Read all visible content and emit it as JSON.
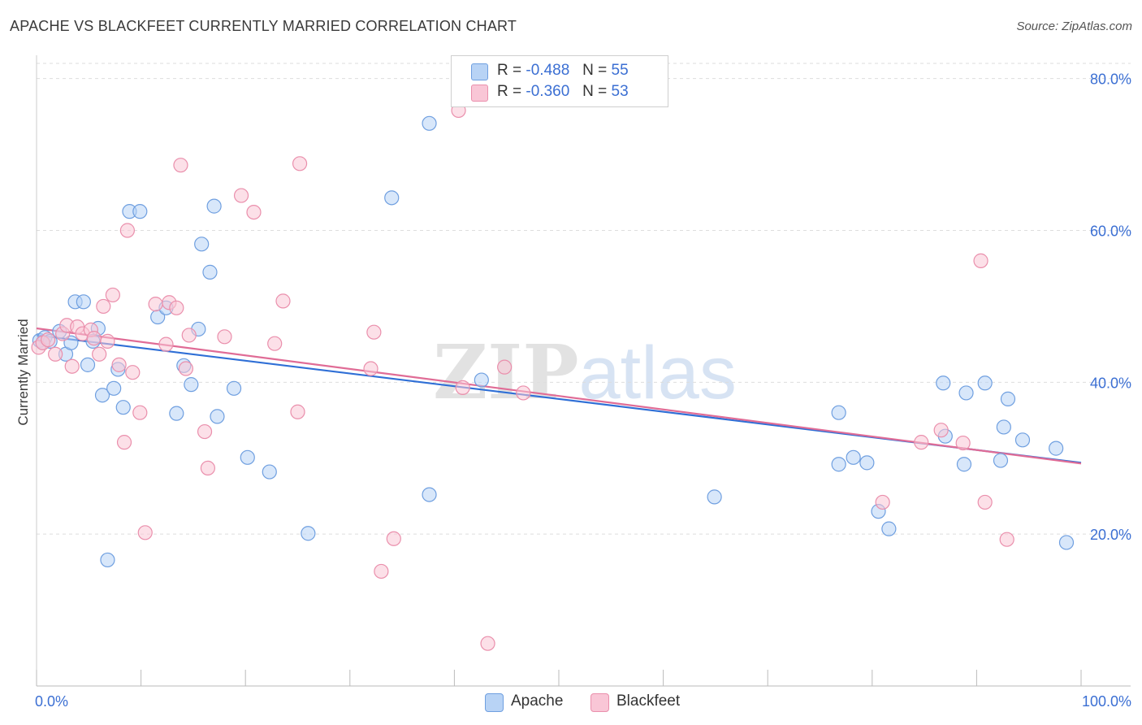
{
  "title": "APACHE VS BLACKFEET CURRENTLY MARRIED CORRELATION CHART",
  "source": "Source: ZipAtlas.com",
  "watermark": "ZIPatlas",
  "legend": {
    "apache": {
      "r_label": "R =",
      "r_value": "-0.488",
      "n_label": "N =",
      "n_value": "55"
    },
    "blackfeet": {
      "r_label": "R =",
      "r_value": "-0.360",
      "n_label": "N =",
      "n_value": "53"
    }
  },
  "bottom_legend": {
    "apache": "Apache",
    "blackfeet": "Blackfeet"
  },
  "colors": {
    "apache_fill": "#b8d3f5",
    "apache_stroke": "#6f9fe0",
    "apache_line": "#2f6fd6",
    "blackfeet_fill": "#f9c6d6",
    "blackfeet_stroke": "#ea8fac",
    "blackfeet_line": "#e06c96",
    "axis_label": "#3b6fd3",
    "grid": "#dddddd"
  },
  "chart_data": {
    "type": "scatter",
    "title": "APACHE VS BLACKFEET CURRENTLY MARRIED CORRELATION CHART",
    "xlabel": "",
    "ylabel": "Currently Married",
    "xlim": [
      0,
      100
    ],
    "ylim": [
      0,
      82
    ],
    "x_tick_labels": [
      "0.0%",
      "100.0%"
    ],
    "y_ticks": [
      20,
      40,
      60,
      80
    ],
    "y_tick_labels": [
      "20.0%",
      "40.0%",
      "60.0%",
      "80.0%"
    ],
    "grid": true,
    "series": [
      {
        "name": "Apache",
        "r": -0.488,
        "n": 55,
        "trend": [
          [
            0,
            46.2
          ],
          [
            100,
            29.4
          ]
        ],
        "points": [
          [
            0.3,
            45.5
          ],
          [
            0.8,
            45.9
          ],
          [
            1.3,
            45.4
          ],
          [
            2.2,
            46.7
          ],
          [
            2.8,
            43.7
          ],
          [
            3.3,
            45.2
          ],
          [
            3.7,
            50.6
          ],
          [
            4.5,
            50.6
          ],
          [
            4.9,
            42.3
          ],
          [
            5.4,
            45.4
          ],
          [
            5.9,
            47.1
          ],
          [
            6.3,
            38.3
          ],
          [
            7.4,
            39.2
          ],
          [
            7.8,
            41.7
          ],
          [
            8.3,
            36.7
          ],
          [
            8.9,
            62.5
          ],
          [
            9.9,
            62.5
          ],
          [
            11.6,
            48.6
          ],
          [
            12.4,
            49.8
          ],
          [
            13.4,
            35.9
          ],
          [
            14.1,
            42.2
          ],
          [
            14.8,
            39.7
          ],
          [
            15.5,
            47.0
          ],
          [
            15.8,
            58.2
          ],
          [
            16.6,
            54.5
          ],
          [
            17.0,
            63.2
          ],
          [
            17.3,
            35.5
          ],
          [
            18.9,
            39.2
          ],
          [
            20.2,
            30.1
          ],
          [
            22.3,
            28.2
          ],
          [
            26.0,
            20.1
          ],
          [
            6.8,
            16.6
          ],
          [
            34.0,
            64.3
          ],
          [
            37.6,
            74.1
          ],
          [
            37.6,
            25.2
          ],
          [
            42.6,
            40.3
          ],
          [
            64.9,
            24.9
          ],
          [
            76.8,
            29.2
          ],
          [
            76.8,
            36.0
          ],
          [
            78.2,
            30.1
          ],
          [
            79.5,
            29.4
          ],
          [
            80.6,
            23.0
          ],
          [
            81.6,
            20.7
          ],
          [
            86.8,
            39.9
          ],
          [
            87.0,
            32.9
          ],
          [
            88.8,
            29.2
          ],
          [
            89.0,
            38.6
          ],
          [
            90.8,
            39.9
          ],
          [
            92.3,
            29.7
          ],
          [
            92.6,
            34.1
          ],
          [
            93.0,
            37.8
          ],
          [
            94.4,
            32.4
          ],
          [
            97.6,
            31.3
          ],
          [
            98.6,
            18.9
          ],
          [
            0.6,
            45.2
          ]
        ]
      },
      {
        "name": "Blackfeet",
        "r": -0.36,
        "n": 53,
        "trend": [
          [
            0,
            47.1
          ],
          [
            100,
            29.3
          ]
        ],
        "points": [
          [
            0.2,
            44.6
          ],
          [
            0.6,
            45.2
          ],
          [
            1.1,
            45.6
          ],
          [
            1.8,
            43.7
          ],
          [
            2.5,
            46.4
          ],
          [
            2.9,
            47.5
          ],
          [
            3.4,
            42.1
          ],
          [
            3.9,
            47.3
          ],
          [
            4.4,
            46.4
          ],
          [
            5.2,
            46.9
          ],
          [
            5.5,
            45.8
          ],
          [
            6.0,
            43.7
          ],
          [
            6.4,
            50.0
          ],
          [
            6.8,
            45.4
          ],
          [
            7.3,
            51.5
          ],
          [
            7.9,
            42.3
          ],
          [
            8.4,
            32.1
          ],
          [
            8.7,
            60.0
          ],
          [
            9.2,
            41.3
          ],
          [
            9.9,
            36.0
          ],
          [
            10.4,
            20.2
          ],
          [
            11.4,
            50.3
          ],
          [
            12.4,
            45.0
          ],
          [
            12.7,
            50.5
          ],
          [
            13.4,
            49.8
          ],
          [
            13.8,
            68.6
          ],
          [
            14.3,
            41.8
          ],
          [
            14.6,
            46.2
          ],
          [
            16.1,
            33.5
          ],
          [
            16.4,
            28.7
          ],
          [
            18.0,
            46.0
          ],
          [
            19.6,
            64.6
          ],
          [
            20.8,
            62.4
          ],
          [
            22.8,
            45.1
          ],
          [
            23.6,
            50.7
          ],
          [
            25.0,
            36.1
          ],
          [
            25.2,
            68.8
          ],
          [
            32.0,
            41.8
          ],
          [
            32.3,
            46.6
          ],
          [
            33.0,
            15.1
          ],
          [
            34.2,
            19.4
          ],
          [
            40.4,
            75.8
          ],
          [
            40.8,
            39.3
          ],
          [
            43.2,
            5.6
          ],
          [
            44.8,
            42.0
          ],
          [
            46.6,
            38.6
          ],
          [
            84.7,
            32.1
          ],
          [
            86.6,
            33.7
          ],
          [
            88.7,
            32.0
          ],
          [
            90.4,
            56.0
          ],
          [
            90.8,
            24.2
          ],
          [
            92.9,
            19.3
          ],
          [
            81.0,
            24.2
          ]
        ]
      }
    ]
  }
}
